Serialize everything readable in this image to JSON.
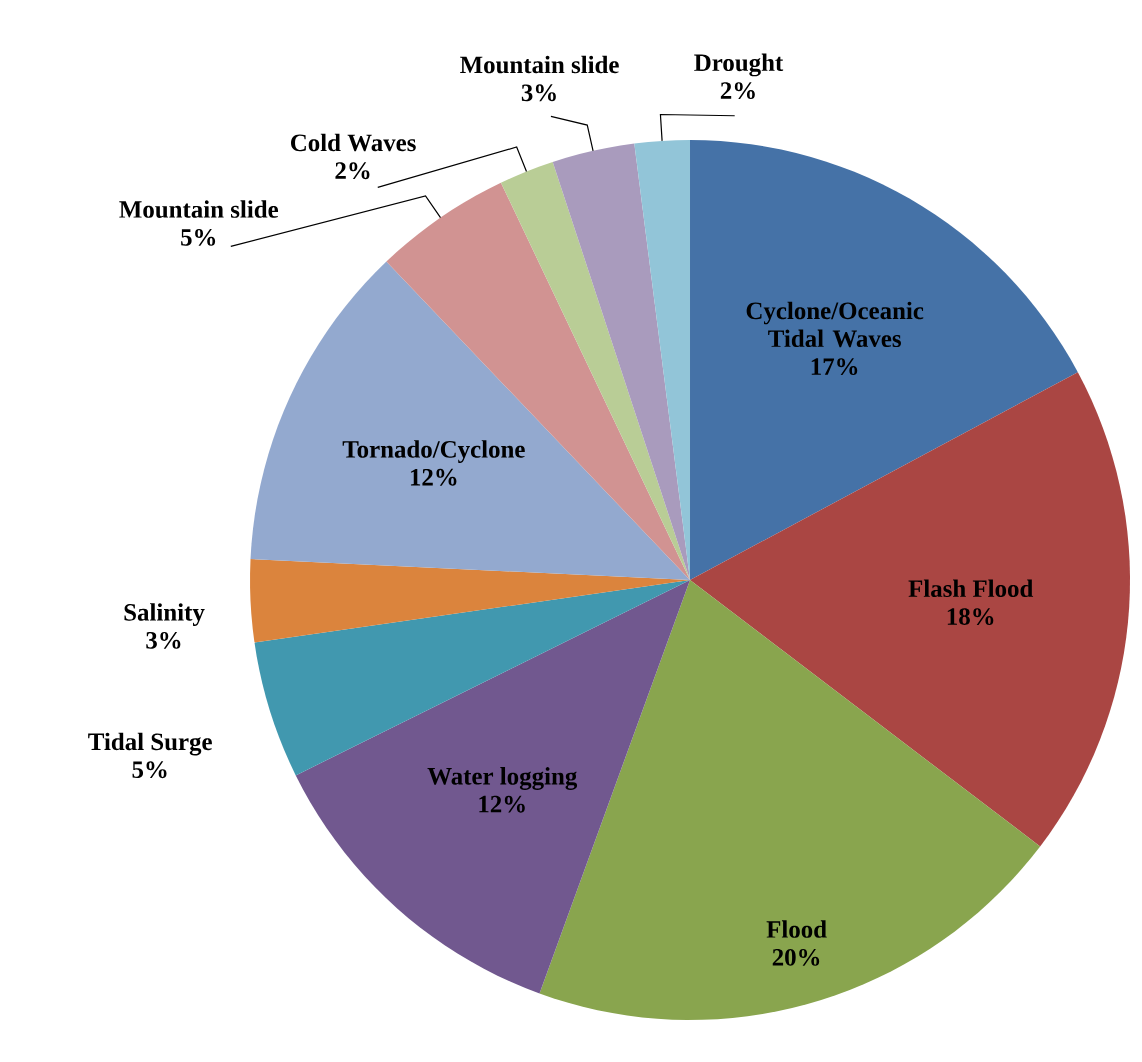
{
  "chart_data": {
    "type": "pie",
    "categories": [
      "Cyclone/Oceanic Tidal Waves",
      "Flash Flood",
      "Flood",
      "Water logging",
      "Tidal Surge",
      "Salinity",
      "Tornado/Cyclone",
      "Mountain slide",
      "Cold Waves",
      "Mountain slide",
      "Drought"
    ],
    "values": [
      17,
      18,
      20,
      12,
      5,
      3,
      12,
      5,
      2,
      3,
      2
    ],
    "value_labels": [
      "17%",
      "18%",
      "20%",
      "12%",
      "5%",
      "3%",
      "12%",
      "5%",
      "2%",
      "3%",
      "2%"
    ],
    "colors": [
      "#4572a7",
      "#aa4643",
      "#89a54e",
      "#71588f",
      "#4198af",
      "#db843d",
      "#93a9cf",
      "#d19392",
      "#b9cd96",
      "#a99bbd",
      "#92c5d8"
    ]
  }
}
